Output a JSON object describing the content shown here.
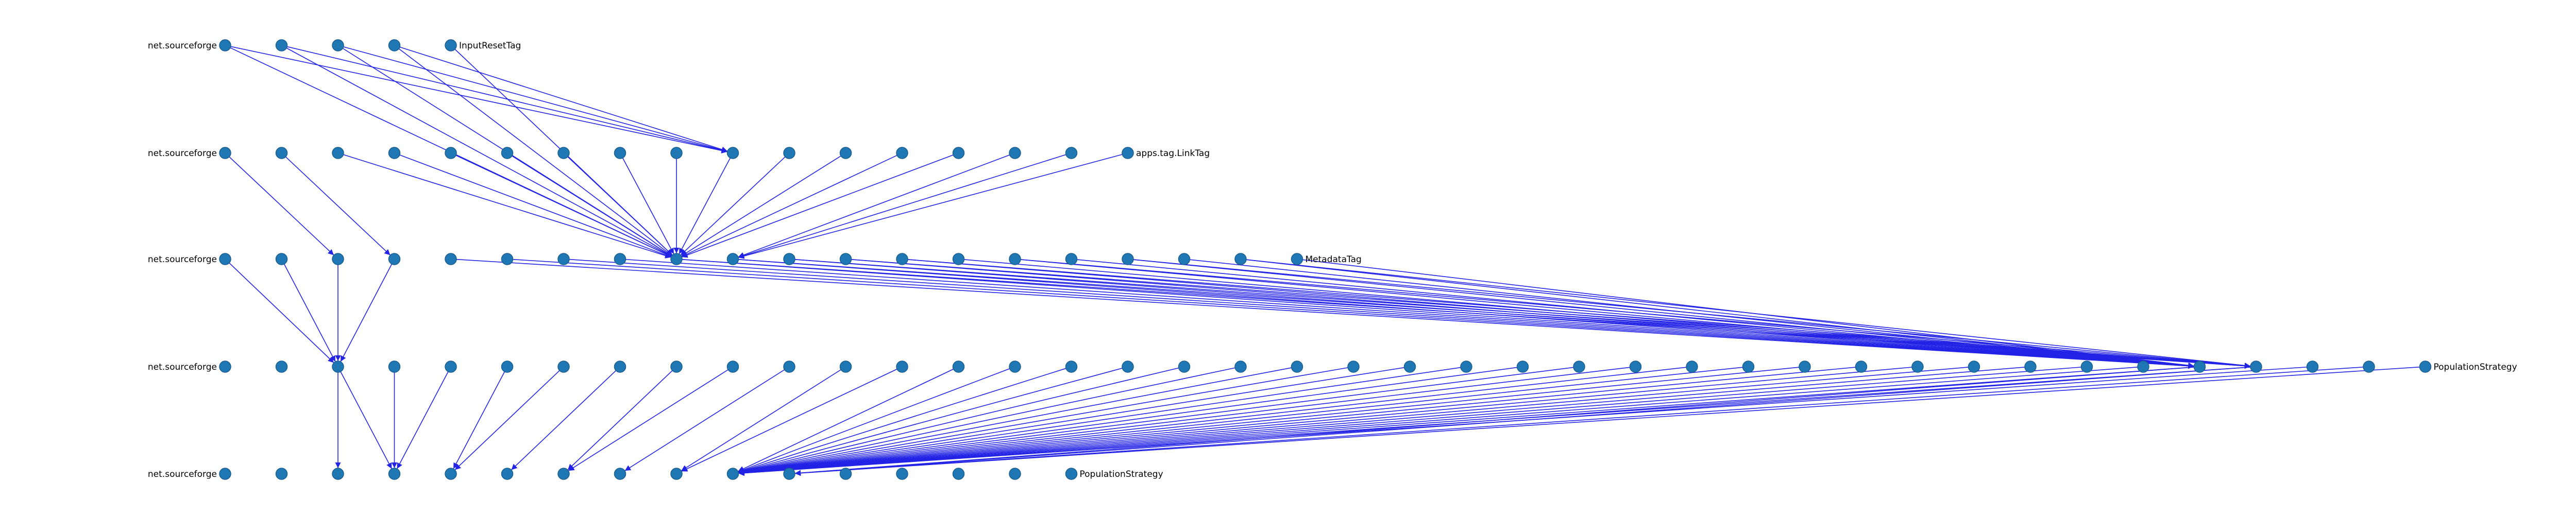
{
  "diagram": {
    "type": "layered-dependency-graph",
    "colors": {
      "edge": "#2323e6",
      "node": "#1f77b4",
      "label": "#000000",
      "background": "#ffffff"
    },
    "layers": [
      {
        "rank": 0,
        "count": 5,
        "readable_labels": [
          {
            "index": 0,
            "text": "net.sourceforge"
          },
          {
            "index": 4,
            "text": "InputResetTag"
          }
        ]
      },
      {
        "rank": 1,
        "count": 17,
        "readable_labels": [
          {
            "index": 0,
            "text": "net.sourceforge"
          },
          {
            "index": 16,
            "text": "apps.tag.LinkTag"
          }
        ]
      },
      {
        "rank": 2,
        "count": 20,
        "readable_labels": [
          {
            "index": 0,
            "text": "net.sourceforge"
          },
          {
            "index": 19,
            "text": "MetadataTag"
          }
        ]
      },
      {
        "rank": 3,
        "count": 40,
        "readable_labels": [
          {
            "index": 0,
            "text": "net.sourceforge"
          },
          {
            "index": 39,
            "text": "PopulationStrategy"
          }
        ]
      },
      {
        "rank": 4,
        "count": 16,
        "readable_labels": [
          {
            "index": 0,
            "text": "net.sourceforge"
          },
          {
            "index": 15,
            "text": "PopulationStrategy"
          }
        ]
      }
    ],
    "edges": [
      {
        "from": [
          0,
          0
        ],
        "to": [
          1,
          9
        ]
      },
      {
        "from": [
          0,
          0
        ],
        "to": [
          2,
          8
        ]
      },
      {
        "from": [
          0,
          1
        ],
        "to": [
          1,
          9
        ]
      },
      {
        "from": [
          0,
          1
        ],
        "to": [
          2,
          8
        ]
      },
      {
        "from": [
          0,
          2
        ],
        "to": [
          1,
          9
        ]
      },
      {
        "from": [
          0,
          2
        ],
        "to": [
          2,
          8
        ]
      },
      {
        "from": [
          0,
          3
        ],
        "to": [
          1,
          9
        ]
      },
      {
        "from": [
          0,
          3
        ],
        "to": [
          2,
          8
        ]
      },
      {
        "from": [
          0,
          4
        ],
        "to": [
          2,
          8
        ]
      },
      {
        "from": [
          1,
          0
        ],
        "to": [
          2,
          2
        ]
      },
      {
        "from": [
          1,
          1
        ],
        "to": [
          2,
          3
        ]
      },
      {
        "from": [
          1,
          2
        ],
        "to": [
          2,
          8
        ]
      },
      {
        "from": [
          1,
          3
        ],
        "to": [
          2,
          8
        ]
      },
      {
        "from": [
          1,
          4
        ],
        "to": [
          2,
          8
        ]
      },
      {
        "from": [
          1,
          5
        ],
        "to": [
          2,
          8
        ]
      },
      {
        "from": [
          1,
          6
        ],
        "to": [
          2,
          8
        ]
      },
      {
        "from": [
          1,
          7
        ],
        "to": [
          2,
          8
        ]
      },
      {
        "from": [
          1,
          8
        ],
        "to": [
          2,
          8
        ]
      },
      {
        "from": [
          1,
          9
        ],
        "to": [
          2,
          8
        ]
      },
      {
        "from": [
          1,
          10
        ],
        "to": [
          2,
          8
        ]
      },
      {
        "from": [
          1,
          11
        ],
        "to": [
          2,
          8
        ]
      },
      {
        "from": [
          1,
          12
        ],
        "to": [
          2,
          8
        ]
      },
      {
        "from": [
          1,
          13
        ],
        "to": [
          2,
          8
        ]
      },
      {
        "from": [
          1,
          14
        ],
        "to": [
          2,
          9
        ]
      },
      {
        "from": [
          1,
          15
        ],
        "to": [
          2,
          9
        ]
      },
      {
        "from": [
          1,
          16
        ],
        "to": [
          2,
          9
        ]
      },
      {
        "from": [
          2,
          0
        ],
        "to": [
          3,
          2
        ]
      },
      {
        "from": [
          2,
          1
        ],
        "to": [
          3,
          2
        ]
      },
      {
        "from": [
          2,
          2
        ],
        "to": [
          3,
          2
        ]
      },
      {
        "from": [
          2,
          3
        ],
        "to": [
          3,
          2
        ]
      },
      {
        "from": [
          2,
          4
        ],
        "to": [
          3,
          35
        ]
      },
      {
        "from": [
          2,
          5
        ],
        "to": [
          3,
          35
        ]
      },
      {
        "from": [
          2,
          6
        ],
        "to": [
          3,
          35
        ]
      },
      {
        "from": [
          2,
          7
        ],
        "to": [
          3,
          35
        ]
      },
      {
        "from": [
          2,
          8
        ],
        "to": [
          3,
          35
        ]
      },
      {
        "from": [
          2,
          9
        ],
        "to": [
          3,
          35
        ]
      },
      {
        "from": [
          2,
          10
        ],
        "to": [
          3,
          35
        ]
      },
      {
        "from": [
          2,
          11
        ],
        "to": [
          3,
          35
        ]
      },
      {
        "from": [
          2,
          12
        ],
        "to": [
          3,
          35
        ]
      },
      {
        "from": [
          2,
          13
        ],
        "to": [
          3,
          35
        ]
      },
      {
        "from": [
          2,
          14
        ],
        "to": [
          3,
          35
        ]
      },
      {
        "from": [
          2,
          15
        ],
        "to": [
          3,
          35
        ]
      },
      {
        "from": [
          2,
          16
        ],
        "to": [
          3,
          35
        ]
      },
      {
        "from": [
          2,
          17
        ],
        "to": [
          3,
          35
        ]
      },
      {
        "from": [
          2,
          18
        ],
        "to": [
          3,
          35
        ]
      },
      {
        "from": [
          2,
          19
        ],
        "to": [
          3,
          35
        ]
      },
      {
        "from": [
          2,
          8
        ],
        "to": [
          3,
          36
        ]
      },
      {
        "from": [
          2,
          9
        ],
        "to": [
          3,
          36
        ]
      },
      {
        "from": [
          2,
          10
        ],
        "to": [
          3,
          36
        ]
      },
      {
        "from": [
          2,
          11
        ],
        "to": [
          3,
          36
        ]
      },
      {
        "from": [
          2,
          12
        ],
        "to": [
          3,
          36
        ]
      },
      {
        "from": [
          2,
          14
        ],
        "to": [
          3,
          36
        ]
      },
      {
        "from": [
          2,
          16
        ],
        "to": [
          3,
          36
        ]
      },
      {
        "from": [
          2,
          18
        ],
        "to": [
          3,
          36
        ]
      },
      {
        "from": [
          3,
          2
        ],
        "to": [
          4,
          2
        ]
      },
      {
        "from": [
          3,
          2
        ],
        "to": [
          4,
          3
        ]
      },
      {
        "from": [
          3,
          3
        ],
        "to": [
          4,
          3
        ]
      },
      {
        "from": [
          3,
          4
        ],
        "to": [
          4,
          3
        ]
      },
      {
        "from": [
          3,
          5
        ],
        "to": [
          4,
          4
        ]
      },
      {
        "from": [
          3,
          6
        ],
        "to": [
          4,
          4
        ]
      },
      {
        "from": [
          3,
          7
        ],
        "to": [
          4,
          5
        ]
      },
      {
        "from": [
          3,
          8
        ],
        "to": [
          4,
          6
        ]
      },
      {
        "from": [
          3,
          9
        ],
        "to": [
          4,
          6
        ]
      },
      {
        "from": [
          3,
          10
        ],
        "to": [
          4,
          7
        ]
      },
      {
        "from": [
          3,
          11
        ],
        "to": [
          4,
          8
        ]
      },
      {
        "from": [
          3,
          12
        ],
        "to": [
          4,
          8
        ]
      },
      {
        "from": [
          3,
          13
        ],
        "to": [
          4,
          9
        ]
      },
      {
        "from": [
          3,
          14
        ],
        "to": [
          4,
          9
        ]
      },
      {
        "from": [
          3,
          15
        ],
        "to": [
          4,
          9
        ]
      },
      {
        "from": [
          3,
          16
        ],
        "to": [
          4,
          9
        ]
      },
      {
        "from": [
          3,
          17
        ],
        "to": [
          4,
          9
        ]
      },
      {
        "from": [
          3,
          18
        ],
        "to": [
          4,
          9
        ]
      },
      {
        "from": [
          3,
          19
        ],
        "to": [
          4,
          9
        ]
      },
      {
        "from": [
          3,
          20
        ],
        "to": [
          4,
          9
        ]
      },
      {
        "from": [
          3,
          21
        ],
        "to": [
          4,
          9
        ]
      },
      {
        "from": [
          3,
          22
        ],
        "to": [
          4,
          9
        ]
      },
      {
        "from": [
          3,
          23
        ],
        "to": [
          4,
          9
        ]
      },
      {
        "from": [
          3,
          24
        ],
        "to": [
          4,
          9
        ]
      },
      {
        "from": [
          3,
          25
        ],
        "to": [
          4,
          9
        ]
      },
      {
        "from": [
          3,
          26
        ],
        "to": [
          4,
          9
        ]
      },
      {
        "from": [
          3,
          27
        ],
        "to": [
          4,
          9
        ]
      },
      {
        "from": [
          3,
          28
        ],
        "to": [
          4,
          9
        ]
      },
      {
        "from": [
          3,
          29
        ],
        "to": [
          4,
          9
        ]
      },
      {
        "from": [
          3,
          30
        ],
        "to": [
          4,
          9
        ]
      },
      {
        "from": [
          3,
          31
        ],
        "to": [
          4,
          9
        ]
      },
      {
        "from": [
          3,
          32
        ],
        "to": [
          4,
          9
        ]
      },
      {
        "from": [
          3,
          33
        ],
        "to": [
          4,
          9
        ]
      },
      {
        "from": [
          3,
          34
        ],
        "to": [
          4,
          9
        ]
      },
      {
        "from": [
          3,
          35
        ],
        "to": [
          4,
          9
        ]
      },
      {
        "from": [
          3,
          35
        ],
        "to": [
          4,
          10
        ]
      },
      {
        "from": [
          3,
          36
        ],
        "to": [
          4,
          9
        ]
      },
      {
        "from": [
          3,
          36
        ],
        "to": [
          4,
          10
        ]
      },
      {
        "from": [
          3,
          37
        ],
        "to": [
          4,
          9
        ]
      },
      {
        "from": [
          3,
          38
        ],
        "to": [
          4,
          10
        ]
      },
      {
        "from": [
          3,
          39
        ],
        "to": [
          4,
          10
        ]
      }
    ]
  }
}
